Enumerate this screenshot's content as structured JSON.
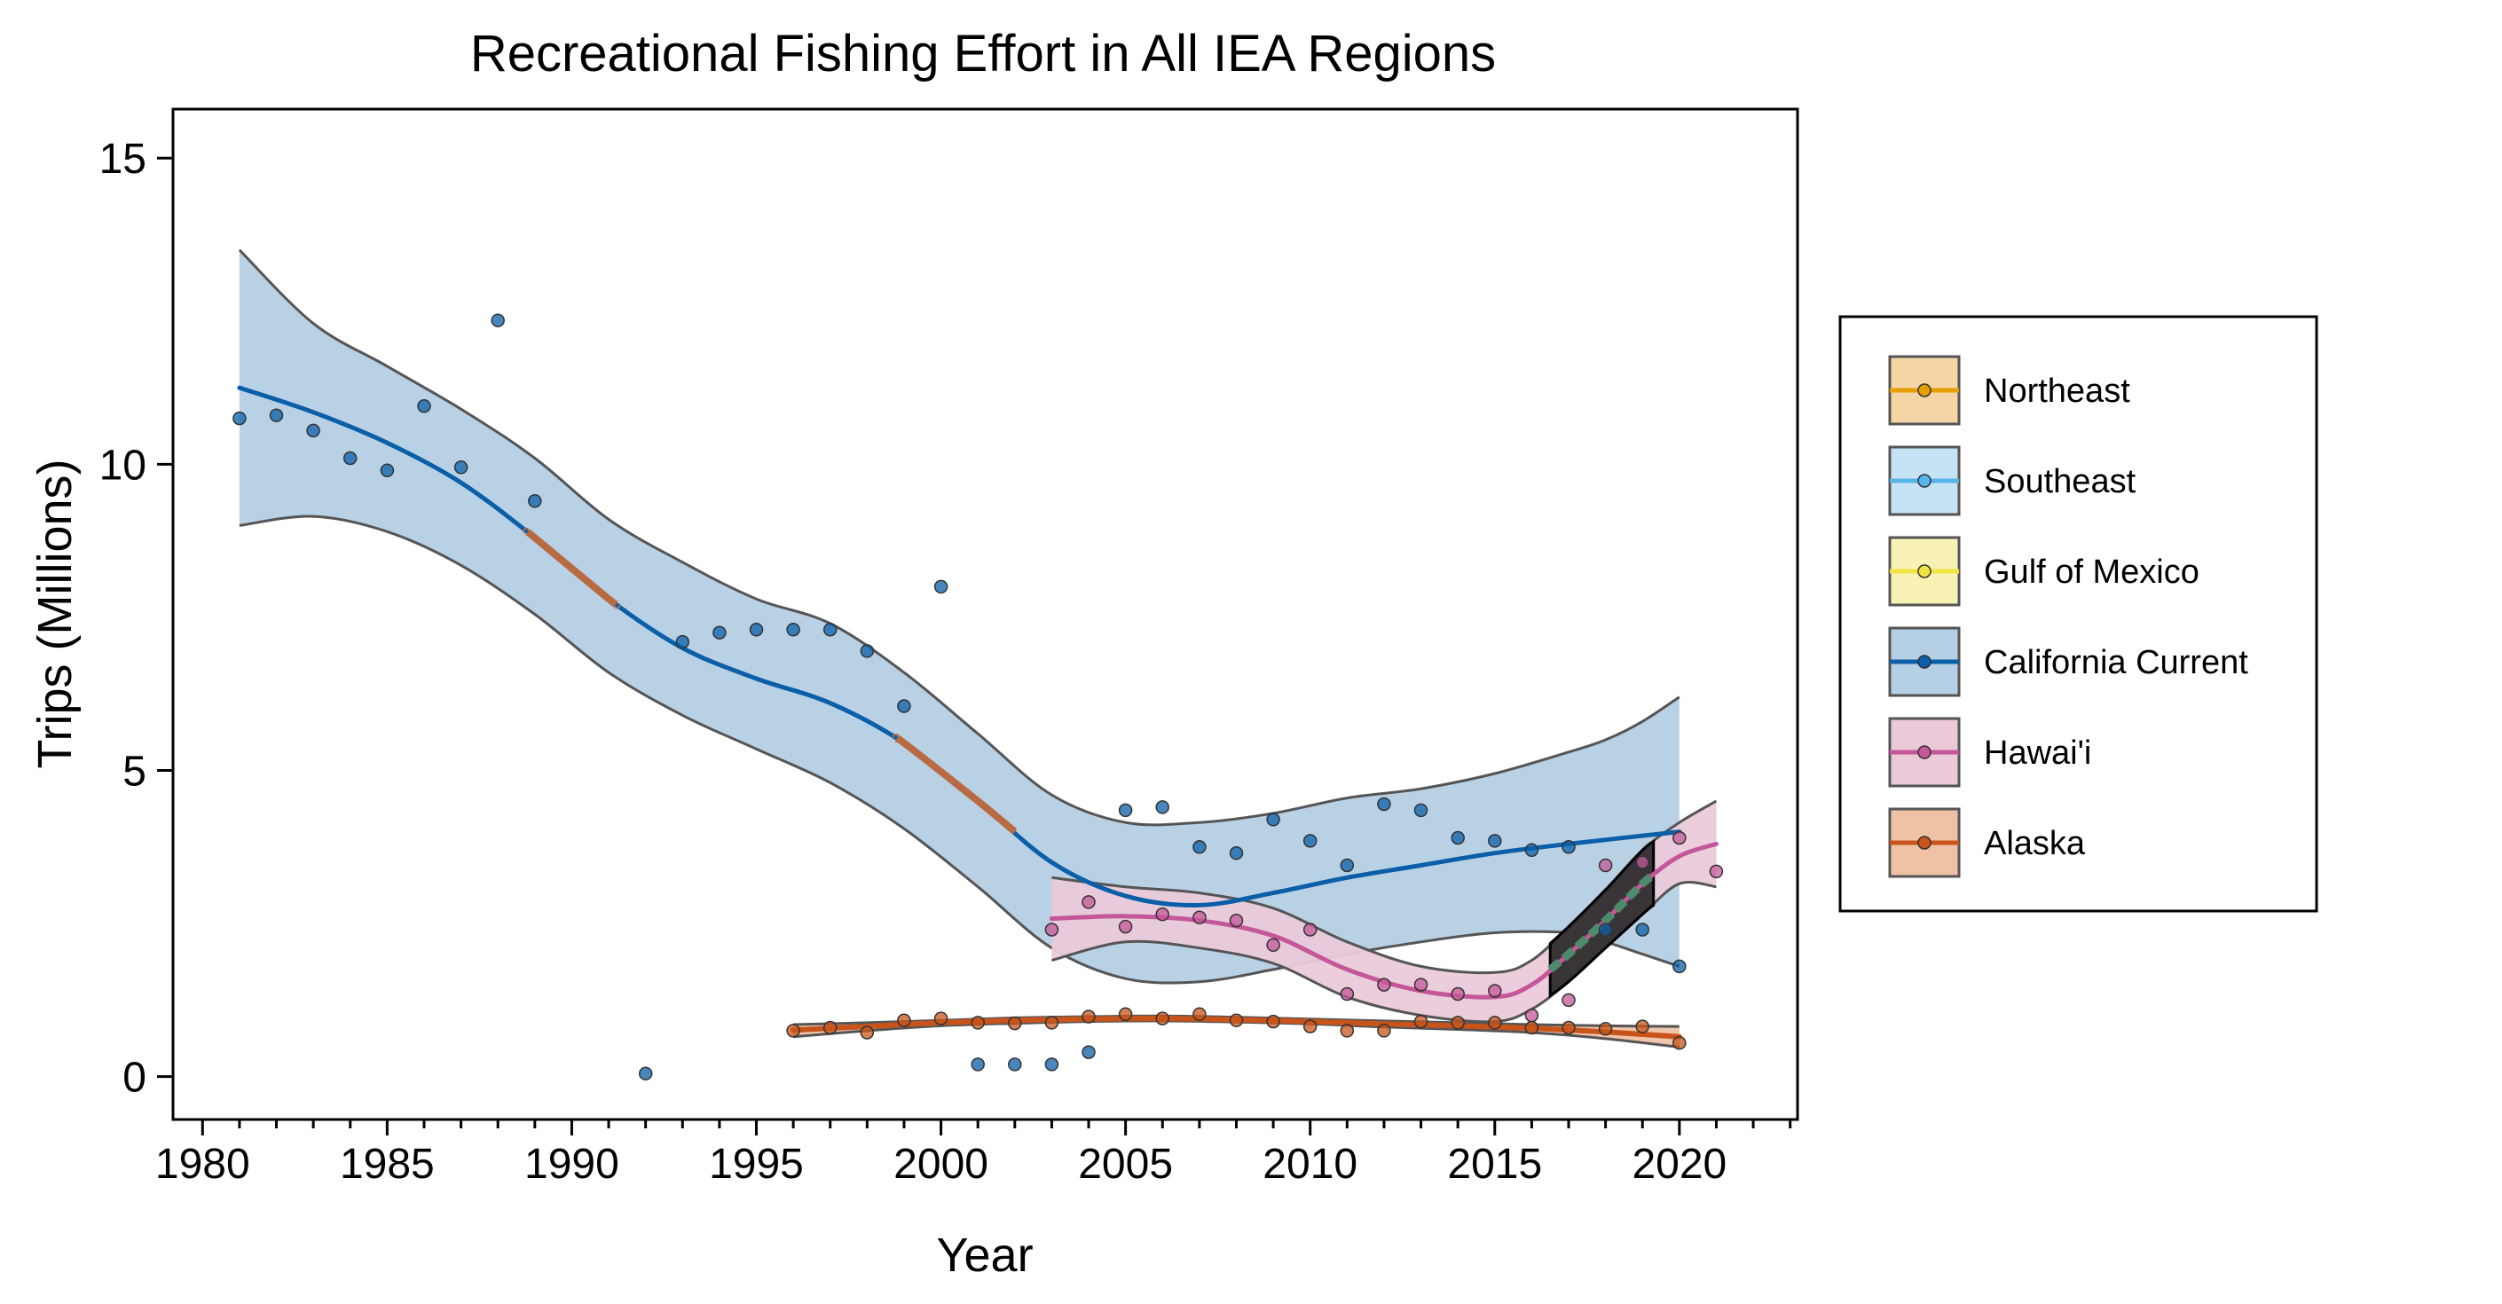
{
  "chart_data": {
    "type": "scatter",
    "title": "Recreational Fishing Effort in All IEA Regions",
    "xlabel": "Year",
    "ylabel": "Trips (Millions)",
    "xlim": [
      1979.2,
      2023.2
    ],
    "ylim": [
      -0.7,
      15.8
    ],
    "x_ticks": [
      1980,
      1985,
      1990,
      1995,
      2000,
      2005,
      2010,
      2015,
      2020
    ],
    "y_ticks": [
      0,
      5,
      10,
      15
    ],
    "grid": false,
    "legend_position": "right",
    "series": [
      {
        "name": "Northeast",
        "color": "#E69F00",
        "fill": "#F5D5A6",
        "points": []
      },
      {
        "name": "Southeast",
        "color": "#56B4E9",
        "fill": "#C6E3F6",
        "points": []
      },
      {
        "name": "Gulf of Mexico",
        "color": "#F0E442",
        "fill": "#F8F3B4",
        "points": []
      },
      {
        "name": "California Current",
        "color": "#0A5FA8",
        "fill": "#B5CFE4",
        "points": [
          [
            1981,
            10.75
          ],
          [
            1982,
            10.8
          ],
          [
            1983,
            10.55
          ],
          [
            1984,
            10.1
          ],
          [
            1985,
            9.9
          ],
          [
            1986,
            10.95
          ],
          [
            1987,
            9.95
          ],
          [
            1988,
            12.35
          ],
          [
            1989,
            9.4
          ],
          [
            1992,
            0.05
          ],
          [
            1993,
            7.1
          ],
          [
            1994,
            7.25
          ],
          [
            1995,
            7.3
          ],
          [
            1996,
            7.3
          ],
          [
            1997,
            7.3
          ],
          [
            1998,
            6.95
          ],
          [
            1999,
            6.05
          ],
          [
            2000,
            8.0
          ],
          [
            2001,
            0.2
          ],
          [
            2002,
            0.2
          ],
          [
            2003,
            0.2
          ],
          [
            2004,
            0.4
          ],
          [
            2005,
            4.35
          ],
          [
            2006,
            4.4
          ],
          [
            2007,
            3.75
          ],
          [
            2008,
            3.65
          ],
          [
            2009,
            4.2
          ],
          [
            2010,
            3.85
          ],
          [
            2011,
            3.45
          ],
          [
            2012,
            4.45
          ],
          [
            2013,
            4.35
          ],
          [
            2014,
            3.9
          ],
          [
            2015,
            3.85
          ],
          [
            2016,
            3.7
          ],
          [
            2017,
            3.75
          ],
          [
            2018,
            2.4
          ],
          [
            2019,
            2.4
          ],
          [
            2020,
            1.8
          ]
        ],
        "trend": [
          [
            1981,
            11.25
          ],
          [
            1983,
            10.85
          ],
          [
            1985,
            10.35
          ],
          [
            1987,
            9.7
          ],
          [
            1989,
            8.8
          ],
          [
            1991,
            7.8
          ],
          [
            1993,
            7.0
          ],
          [
            1995,
            6.5
          ],
          [
            1997,
            6.1
          ],
          [
            1999,
            5.45
          ],
          [
            2001,
            4.5
          ],
          [
            2003,
            3.5
          ],
          [
            2005,
            2.95
          ],
          [
            2007,
            2.8
          ],
          [
            2009,
            3.0
          ],
          [
            2011,
            3.25
          ],
          [
            2013,
            3.45
          ],
          [
            2015,
            3.65
          ],
          [
            2017,
            3.8
          ],
          [
            2020,
            4.0
          ]
        ],
        "band_upper": [
          [
            1981,
            13.5
          ],
          [
            1983,
            12.3
          ],
          [
            1985,
            11.6
          ],
          [
            1987,
            10.9
          ],
          [
            1989,
            10.1
          ],
          [
            1991,
            9.1
          ],
          [
            1993,
            8.4
          ],
          [
            1995,
            7.8
          ],
          [
            1997,
            7.4
          ],
          [
            1999,
            6.6
          ],
          [
            2001,
            5.6
          ],
          [
            2003,
            4.6
          ],
          [
            2005,
            4.15
          ],
          [
            2007,
            4.15
          ],
          [
            2009,
            4.3
          ],
          [
            2011,
            4.55
          ],
          [
            2013,
            4.7
          ],
          [
            2015,
            4.95
          ],
          [
            2017,
            5.3
          ],
          [
            2018,
            5.5
          ],
          [
            2019,
            5.8
          ],
          [
            2020,
            6.2
          ]
        ],
        "band_lower": [
          [
            1981,
            9.0
          ],
          [
            1983,
            9.15
          ],
          [
            1985,
            8.9
          ],
          [
            1987,
            8.35
          ],
          [
            1989,
            7.55
          ],
          [
            1991,
            6.6
          ],
          [
            1993,
            5.9
          ],
          [
            1995,
            5.35
          ],
          [
            1997,
            4.8
          ],
          [
            1999,
            4.05
          ],
          [
            2001,
            3.1
          ],
          [
            2003,
            2.1
          ],
          [
            2005,
            1.6
          ],
          [
            2007,
            1.55
          ],
          [
            2009,
            1.75
          ],
          [
            2011,
            2.0
          ],
          [
            2013,
            2.2
          ],
          [
            2015,
            2.35
          ],
          [
            2017,
            2.35
          ],
          [
            2018,
            2.2
          ],
          [
            2019,
            2.0
          ],
          [
            2020,
            1.8
          ]
        ],
        "trend_segments": [
          {
            "color": "#B86A42",
            "range": [
              1988.8,
              1991.2
            ]
          },
          {
            "color": "#B86A42",
            "range": [
              1998.8,
              2002.0
            ]
          }
        ]
      },
      {
        "name": "Hawai'i",
        "color": "#C4579A",
        "fill": "#EACAD9",
        "points": [
          [
            2003,
            2.4
          ],
          [
            2004,
            2.85
          ],
          [
            2005,
            2.45
          ],
          [
            2006,
            2.65
          ],
          [
            2007,
            2.6
          ],
          [
            2008,
            2.55
          ],
          [
            2009,
            2.15
          ],
          [
            2010,
            2.4
          ],
          [
            2011,
            1.35
          ],
          [
            2012,
            1.5
          ],
          [
            2013,
            1.5
          ],
          [
            2014,
            1.35
          ],
          [
            2015,
            1.4
          ],
          [
            2016,
            1.0
          ],
          [
            2017,
            1.25
          ],
          [
            2018,
            3.45
          ],
          [
            2019,
            3.5
          ],
          [
            2020,
            3.9
          ],
          [
            2021,
            3.35
          ]
        ],
        "trend": [
          [
            2003,
            2.58
          ],
          [
            2005,
            2.62
          ],
          [
            2007,
            2.55
          ],
          [
            2009,
            2.3
          ],
          [
            2011,
            1.75
          ],
          [
            2013,
            1.4
          ],
          [
            2015,
            1.3
          ],
          [
            2016,
            1.5
          ],
          [
            2017,
            2.0
          ],
          [
            2018,
            2.55
          ],
          [
            2019,
            3.15
          ],
          [
            2020,
            3.6
          ],
          [
            2021,
            3.8
          ]
        ],
        "band_upper": [
          [
            2003,
            3.25
          ],
          [
            2005,
            3.1
          ],
          [
            2007,
            3.0
          ],
          [
            2009,
            2.75
          ],
          [
            2011,
            2.2
          ],
          [
            2013,
            1.8
          ],
          [
            2015,
            1.7
          ],
          [
            2016,
            1.9
          ],
          [
            2017,
            2.45
          ],
          [
            2018,
            3.05
          ],
          [
            2019,
            3.7
          ],
          [
            2020,
            4.15
          ],
          [
            2021,
            4.5
          ]
        ],
        "band_lower": [
          [
            2003,
            1.9
          ],
          [
            2005,
            2.2
          ],
          [
            2007,
            2.1
          ],
          [
            2009,
            1.85
          ],
          [
            2011,
            1.3
          ],
          [
            2013,
            1.0
          ],
          [
            2015,
            0.9
          ],
          [
            2016,
            1.1
          ],
          [
            2017,
            1.55
          ],
          [
            2018,
            2.1
          ],
          [
            2019,
            2.65
          ],
          [
            2020,
            3.15
          ],
          [
            2021,
            3.1
          ]
        ],
        "highlight": {
          "color": "#4E8A6C",
          "range": [
            2016.5,
            2019.3
          ]
        }
      },
      {
        "name": "Alaska",
        "color": "#C8541A",
        "fill": "#EFC2A6",
        "points": [
          [
            1996,
            0.75
          ],
          [
            1997,
            0.8
          ],
          [
            1998,
            0.72
          ],
          [
            1999,
            0.92
          ],
          [
            2000,
            0.95
          ],
          [
            2001,
            0.88
          ],
          [
            2002,
            0.87
          ],
          [
            2003,
            0.88
          ],
          [
            2004,
            0.98
          ],
          [
            2005,
            1.02
          ],
          [
            2006,
            0.95
          ],
          [
            2007,
            1.02
          ],
          [
            2008,
            0.92
          ],
          [
            2009,
            0.9
          ],
          [
            2010,
            0.82
          ],
          [
            2011,
            0.75
          ],
          [
            2012,
            0.75
          ],
          [
            2013,
            0.9
          ],
          [
            2014,
            0.88
          ],
          [
            2015,
            0.88
          ],
          [
            2016,
            0.8
          ],
          [
            2017,
            0.8
          ],
          [
            2018,
            0.78
          ],
          [
            2019,
            0.82
          ],
          [
            2020,
            0.55
          ]
        ],
        "trend": [
          [
            1996,
            0.76
          ],
          [
            1998,
            0.82
          ],
          [
            2000,
            0.88
          ],
          [
            2002,
            0.92
          ],
          [
            2004,
            0.94
          ],
          [
            2006,
            0.95
          ],
          [
            2008,
            0.93
          ],
          [
            2010,
            0.9
          ],
          [
            2012,
            0.86
          ],
          [
            2014,
            0.83
          ],
          [
            2016,
            0.79
          ],
          [
            2018,
            0.73
          ],
          [
            2020,
            0.65
          ]
        ],
        "band_upper": [
          [
            1996,
            0.85
          ],
          [
            1998,
            0.88
          ],
          [
            2000,
            0.92
          ],
          [
            2002,
            0.96
          ],
          [
            2004,
            0.98
          ],
          [
            2006,
            0.99
          ],
          [
            2008,
            0.97
          ],
          [
            2010,
            0.94
          ],
          [
            2012,
            0.91
          ],
          [
            2014,
            0.88
          ],
          [
            2016,
            0.85
          ],
          [
            2018,
            0.83
          ],
          [
            2020,
            0.82
          ]
        ],
        "band_lower": [
          [
            1996,
            0.65
          ],
          [
            1998,
            0.75
          ],
          [
            2000,
            0.83
          ],
          [
            2002,
            0.87
          ],
          [
            2004,
            0.9
          ],
          [
            2006,
            0.91
          ],
          [
            2008,
            0.89
          ],
          [
            2010,
            0.86
          ],
          [
            2012,
            0.81
          ],
          [
            2014,
            0.77
          ],
          [
            2016,
            0.72
          ],
          [
            2018,
            0.62
          ],
          [
            2020,
            0.48
          ]
        ]
      }
    ]
  }
}
